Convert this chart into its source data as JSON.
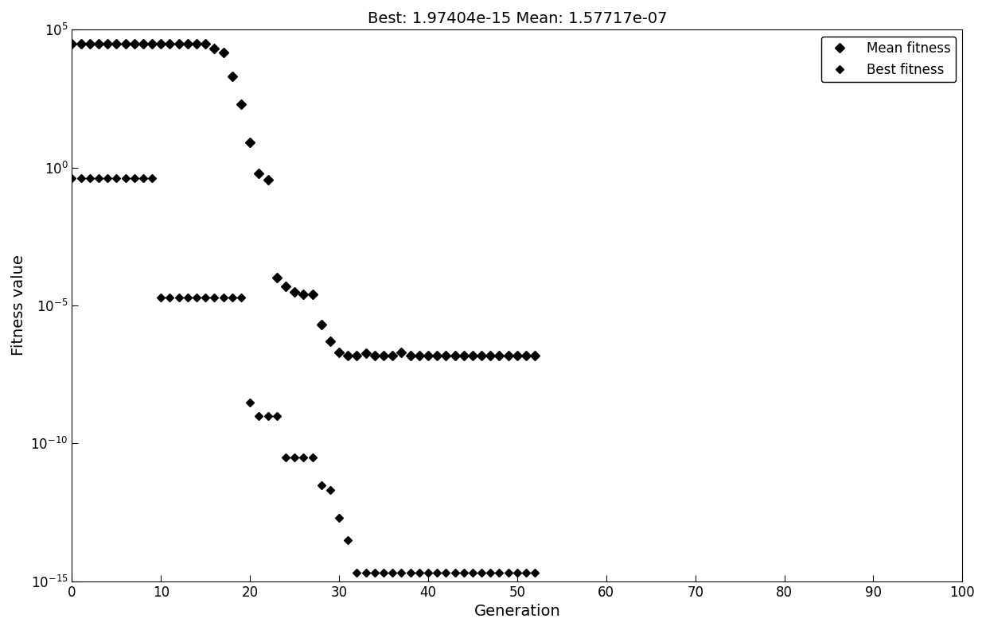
{
  "title": "Best: 1.97404e-15 Mean: 1.57717e-07",
  "xlabel": "Generation",
  "ylabel": "Fitness value",
  "xlim": [
    0,
    100
  ],
  "ylim": [
    1e-15,
    100000.0
  ],
  "yticks": [
    1e-15,
    1e-10,
    1e-05,
    1.0,
    100000.0
  ],
  "xticks": [
    0,
    10,
    20,
    30,
    40,
    50,
    60,
    70,
    80,
    90,
    100
  ],
  "mean_fitness_x": [
    0,
    1,
    2,
    3,
    4,
    5,
    6,
    7,
    8,
    9,
    10,
    11,
    12,
    13,
    14,
    15,
    16,
    17,
    18,
    19,
    20,
    21,
    22,
    23,
    24,
    25,
    26,
    27,
    28,
    29,
    30,
    31,
    32,
    33,
    34,
    35,
    36,
    37,
    38,
    39,
    40,
    41,
    42,
    43,
    44,
    45,
    46,
    47,
    48,
    49,
    50,
    51,
    52
  ],
  "mean_fitness_y": [
    30000.0,
    30000.0,
    30000.0,
    30000.0,
    30000.0,
    30000.0,
    30000.0,
    30000.0,
    30000.0,
    30000.0,
    30000.0,
    30000.0,
    30000.0,
    30000.0,
    30000.0,
    30000.0,
    20000.0,
    15000.0,
    2000.0,
    200.0,
    8.0,
    0.6,
    0.35,
    0.0001,
    5e-05,
    3e-05,
    2.5e-05,
    2.5e-05,
    2e-06,
    5e-07,
    2e-07,
    1.5e-07,
    1.5e-07,
    1.8e-07,
    1.5e-07,
    1.5e-07,
    1.5e-07,
    2e-07,
    1.5e-07,
    1.5e-07,
    1.5e-07,
    1.5e-07,
    1.5e-07,
    1.5e-07,
    1.5e-07,
    1.5e-07,
    1.5e-07,
    1.5e-07,
    1.5e-07,
    1.5e-07,
    1.5e-07,
    1.5e-07,
    1.5e-07
  ],
  "best_fitness_x": [
    0,
    1,
    2,
    3,
    4,
    5,
    6,
    7,
    8,
    9,
    10,
    11,
    12,
    13,
    14,
    15,
    16,
    17,
    18,
    19,
    20,
    21,
    22,
    23,
    24,
    25,
    26,
    27,
    28,
    29,
    30,
    31,
    32,
    33,
    34,
    35,
    36,
    37,
    38,
    39,
    40,
    41,
    42,
    43,
    44,
    45,
    46,
    47,
    48,
    49,
    50,
    51,
    52
  ],
  "best_fitness_y": [
    0.4,
    0.4,
    0.4,
    0.4,
    0.4,
    0.4,
    0.4,
    0.4,
    0.4,
    0.4,
    2e-05,
    2e-05,
    2e-05,
    2e-05,
    2e-05,
    2e-05,
    2e-05,
    2e-05,
    2e-05,
    2e-05,
    3e-09,
    1e-09,
    1e-09,
    1e-09,
    3e-11,
    3e-11,
    3e-11,
    3e-11,
    3e-12,
    2e-12,
    2e-13,
    3e-14,
    2e-15,
    1.97e-15,
    1.97e-15,
    1.97e-15,
    1.97e-15,
    1.97e-15,
    1.97e-15,
    1.97e-15,
    1.97e-15,
    1.97e-15,
    1.97e-15,
    1.97e-15,
    1.97e-15,
    1.97e-15,
    1.97e-15,
    1.97e-15,
    1.97e-15,
    1.97e-15,
    1.97e-15,
    1.97e-15,
    1.97e-15
  ],
  "marker": "D",
  "mean_marker_size": 6,
  "best_marker_size": 5,
  "color": "#000000",
  "legend_loc": "upper right",
  "best_label": "Best fitness",
  "mean_label": "Mean fitness",
  "title_fontsize": 14,
  "label_fontsize": 14,
  "tick_fontsize": 12,
  "legend_fontsize": 12
}
